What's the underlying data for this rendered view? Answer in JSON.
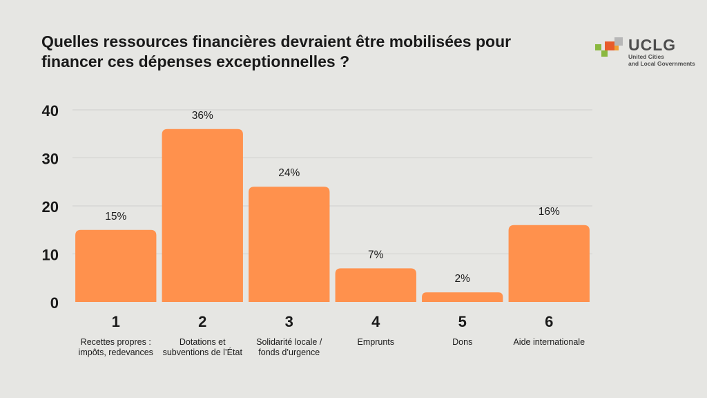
{
  "header": {
    "title": "Quelles ressources financières devraient être mobilisées pour financer ces dépenses exceptionnelles ?"
  },
  "logo": {
    "wordmark": "UCLG",
    "tagline_line1": "United Cities",
    "tagline_line2": "and Local Governments",
    "colors": [
      "#e85c2b",
      "#8ab83f",
      "#f0a033",
      "#b7b7b7"
    ]
  },
  "colors": {
    "bar": "#ff914d",
    "grid": "#cfcfcc",
    "background": "#e6e6e3",
    "text": "#1a1a1a"
  },
  "chart_data": {
    "type": "bar",
    "categories": [
      "1",
      "2",
      "3",
      "4",
      "5",
      "6"
    ],
    "category_descriptions": [
      "Recettes propres : impôts, redevances",
      "Dotations et subventions de l’État",
      "Solidarité locale / fonds d’urgence",
      "Emprunts",
      "Dons",
      "Aide internationale"
    ],
    "values": [
      15,
      36,
      24,
      7,
      2,
      16
    ],
    "data_labels": [
      "15%",
      "36%",
      "24%",
      "7%",
      "2%",
      "16%"
    ],
    "yticks": [
      0,
      10,
      20,
      30,
      40
    ],
    "ylim": [
      0,
      40
    ],
    "grid": true,
    "legend": "none"
  }
}
